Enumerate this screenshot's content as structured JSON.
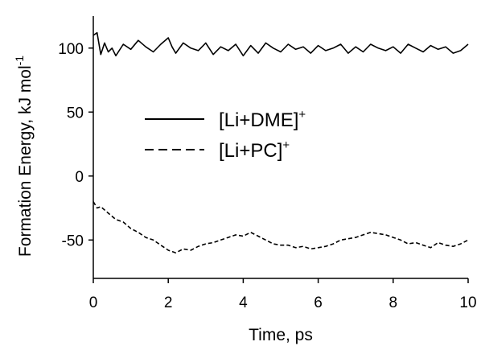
{
  "chart_data": {
    "type": "line",
    "title": "",
    "xlabel": "Time, ps",
    "ylabel_main": "Formation Energy, kJ mol",
    "ylabel_sup": "-1",
    "xlim": [
      0,
      10
    ],
    "ylim": [
      -80,
      125
    ],
    "xticks": [
      0,
      2,
      4,
      6,
      8,
      10
    ],
    "yticks": [
      100,
      50,
      0,
      -50
    ],
    "grid": false,
    "legend_position": "center-left",
    "series": [
      {
        "name": "[Li+DME]",
        "name_sup": "+",
        "style": "solid",
        "color": "#000000",
        "x": [
          0,
          0.1,
          0.2,
          0.3,
          0.4,
          0.5,
          0.6,
          0.8,
          1.0,
          1.2,
          1.4,
          1.6,
          1.8,
          2.0,
          2.1,
          2.2,
          2.4,
          2.6,
          2.8,
          3.0,
          3.2,
          3.4,
          3.6,
          3.8,
          4.0,
          4.2,
          4.4,
          4.6,
          4.8,
          5.0,
          5.2,
          5.4,
          5.6,
          5.8,
          6.0,
          6.2,
          6.4,
          6.6,
          6.8,
          7.0,
          7.2,
          7.4,
          7.6,
          7.8,
          8.0,
          8.2,
          8.4,
          8.6,
          8.8,
          9.0,
          9.2,
          9.4,
          9.6,
          9.8,
          10.0
        ],
        "y": [
          110,
          112,
          95,
          104,
          97,
          100,
          94,
          103,
          99,
          106,
          101,
          97,
          103,
          108,
          101,
          96,
          104,
          100,
          98,
          104,
          95,
          101,
          98,
          103,
          94,
          102,
          96,
          104,
          100,
          97,
          103,
          99,
          101,
          96,
          102,
          98,
          100,
          103,
          96,
          101,
          97,
          103,
          100,
          98,
          101,
          96,
          103,
          100,
          97,
          102,
          99,
          101,
          96,
          98,
          103
        ]
      },
      {
        "name": "[Li+PC]",
        "name_sup": "+",
        "style": "dashed",
        "color": "#000000",
        "x": [
          0,
          0.1,
          0.2,
          0.4,
          0.6,
          0.8,
          1.0,
          1.2,
          1.4,
          1.6,
          1.8,
          2.0,
          2.2,
          2.4,
          2.6,
          2.8,
          3.0,
          3.2,
          3.4,
          3.6,
          3.8,
          4.0,
          4.2,
          4.4,
          4.6,
          4.8,
          5.0,
          5.2,
          5.4,
          5.6,
          5.8,
          6.0,
          6.2,
          6.4,
          6.6,
          6.8,
          7.0,
          7.2,
          7.4,
          7.6,
          7.8,
          8.0,
          8.2,
          8.4,
          8.6,
          8.8,
          9.0,
          9.2,
          9.4,
          9.6,
          9.8,
          10.0
        ],
        "y": [
          -20,
          -25,
          -24,
          -29,
          -34,
          -36,
          -41,
          -44,
          -48,
          -50,
          -54,
          -58,
          -60,
          -57,
          -58,
          -55,
          -53,
          -52,
          -50,
          -48,
          -46,
          -47,
          -44,
          -47,
          -50,
          -53,
          -54,
          -54,
          -56,
          -55,
          -57,
          -56,
          -55,
          -53,
          -50,
          -49,
          -48,
          -46,
          -44,
          -45,
          -46,
          -48,
          -50,
          -53,
          -52,
          -54,
          -56,
          -52,
          -54,
          -55,
          -53,
          -50
        ]
      }
    ]
  }
}
